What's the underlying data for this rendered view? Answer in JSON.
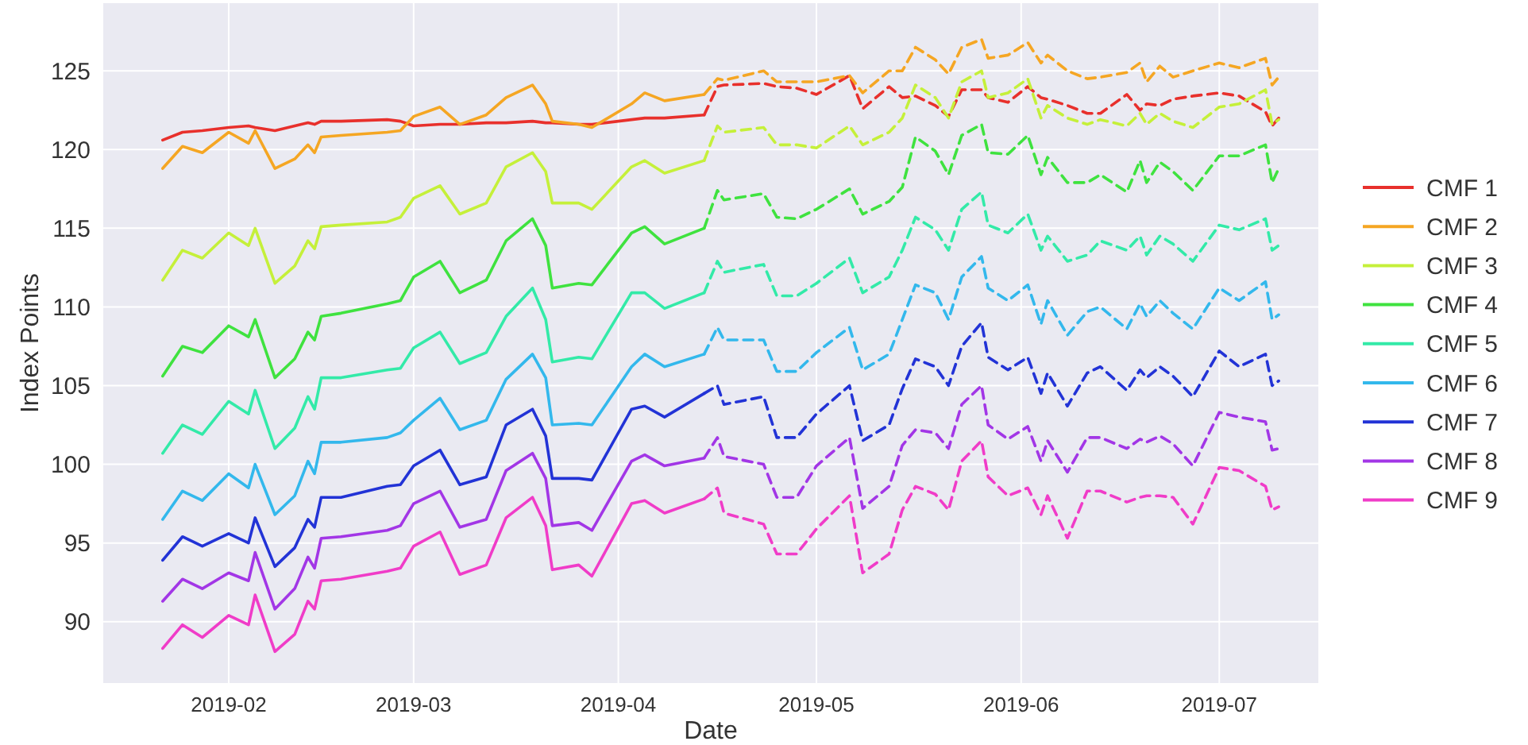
{
  "chart_data": {
    "type": "line",
    "xlabel": "Date",
    "ylabel": "Index Points",
    "xlim": [
      "2019-01-13",
      "2019-07-16"
    ],
    "xticks": [
      "2019-02",
      "2019-03",
      "2019-04",
      "2019-05",
      "2019-06",
      "2019-07"
    ],
    "ylim": [
      86.1,
      129.3
    ],
    "yticks": [
      90,
      95,
      100,
      105,
      110,
      115,
      120,
      125
    ],
    "grid": true,
    "legend": "right",
    "marker": "none",
    "series": [
      {
        "name": "CMF 1",
        "color": "#e8302c",
        "line_style": "solid",
        "x": [
          "2019-01-22",
          "2019-01-25",
          "2019-01-28",
          "2019-02-01",
          "2019-02-04",
          "2019-02-05",
          "2019-02-08",
          "2019-02-11",
          "2019-02-13",
          "2019-02-14",
          "2019-02-15",
          "2019-02-18",
          "2019-02-25",
          "2019-02-27",
          "2019-03-01",
          "2019-03-05",
          "2019-03-08",
          "2019-03-12",
          "2019-03-15",
          "2019-03-19",
          "2019-03-21",
          "2019-03-22",
          "2019-03-26",
          "2019-03-28",
          "2019-04-03",
          "2019-04-05",
          "2019-04-08",
          "2019-04-14"
        ],
        "values": [
          120.6,
          121.1,
          121.2,
          121.4,
          121.5,
          121.4,
          121.2,
          121.5,
          121.7,
          121.6,
          121.8,
          121.8,
          121.9,
          121.8,
          121.5,
          121.6,
          121.6,
          121.7,
          121.7,
          121.8,
          121.7,
          121.7,
          121.6,
          121.6,
          121.9,
          122.0,
          122.0,
          122.2
        ]
      },
      {
        "name": "CMF 2",
        "color": "#f5a623",
        "line_style": "solid",
        "x": [
          "2019-01-22",
          "2019-01-25",
          "2019-01-28",
          "2019-02-01",
          "2019-02-04",
          "2019-02-05",
          "2019-02-08",
          "2019-02-11",
          "2019-02-13",
          "2019-02-14",
          "2019-02-15",
          "2019-02-18",
          "2019-02-25",
          "2019-02-27",
          "2019-03-01",
          "2019-03-05",
          "2019-03-08",
          "2019-03-12",
          "2019-03-15",
          "2019-03-19",
          "2019-03-21",
          "2019-03-22",
          "2019-03-26",
          "2019-03-28",
          "2019-04-03",
          "2019-04-05",
          "2019-04-08",
          "2019-04-14"
        ],
        "values": [
          118.8,
          120.2,
          119.8,
          121.1,
          120.4,
          121.2,
          118.8,
          119.4,
          120.3,
          119.8,
          120.8,
          120.9,
          121.1,
          121.2,
          122.1,
          122.7,
          121.6,
          122.2,
          123.3,
          124.1,
          122.9,
          121.8,
          121.6,
          121.4,
          122.9,
          123.6,
          123.1,
          123.5
        ]
      },
      {
        "name": "CMF 3",
        "color": "#c5f03a",
        "line_style": "solid",
        "x": [
          "2019-01-22",
          "2019-01-25",
          "2019-01-28",
          "2019-02-01",
          "2019-02-04",
          "2019-02-05",
          "2019-02-08",
          "2019-02-11",
          "2019-02-13",
          "2019-02-14",
          "2019-02-15",
          "2019-02-18",
          "2019-02-25",
          "2019-02-27",
          "2019-03-01",
          "2019-03-05",
          "2019-03-08",
          "2019-03-12",
          "2019-03-15",
          "2019-03-19",
          "2019-03-21",
          "2019-03-22",
          "2019-03-26",
          "2019-03-28",
          "2019-04-03",
          "2019-04-05",
          "2019-04-08",
          "2019-04-14"
        ],
        "values": [
          111.7,
          113.6,
          113.1,
          114.7,
          113.9,
          115.0,
          111.5,
          112.6,
          114.2,
          113.7,
          115.1,
          115.2,
          115.4,
          115.7,
          116.9,
          117.7,
          115.9,
          116.6,
          118.9,
          119.8,
          118.6,
          116.6,
          116.6,
          116.2,
          118.9,
          119.3,
          118.5,
          119.3
        ]
      },
      {
        "name": "CMF 4",
        "color": "#3fe23f",
        "line_style": "solid",
        "x": [
          "2019-01-22",
          "2019-01-25",
          "2019-01-28",
          "2019-02-01",
          "2019-02-04",
          "2019-02-05",
          "2019-02-08",
          "2019-02-11",
          "2019-02-13",
          "2019-02-14",
          "2019-02-15",
          "2019-02-18",
          "2019-02-25",
          "2019-02-27",
          "2019-03-01",
          "2019-03-05",
          "2019-03-08",
          "2019-03-12",
          "2019-03-15",
          "2019-03-19",
          "2019-03-21",
          "2019-03-22",
          "2019-03-26",
          "2019-03-28",
          "2019-04-03",
          "2019-04-05",
          "2019-04-08",
          "2019-04-14"
        ],
        "values": [
          105.6,
          107.5,
          107.1,
          108.8,
          108.1,
          109.2,
          105.5,
          106.7,
          108.4,
          107.9,
          109.4,
          109.6,
          110.2,
          110.4,
          111.9,
          112.9,
          110.9,
          111.7,
          114.2,
          115.6,
          113.9,
          111.2,
          111.5,
          111.4,
          114.7,
          115.1,
          114.0,
          115.0
        ]
      },
      {
        "name": "CMF 5",
        "color": "#33eaa8",
        "line_style": "solid",
        "x": [
          "2019-01-22",
          "2019-01-25",
          "2019-01-28",
          "2019-02-01",
          "2019-02-04",
          "2019-02-05",
          "2019-02-08",
          "2019-02-11",
          "2019-02-13",
          "2019-02-14",
          "2019-02-15",
          "2019-02-18",
          "2019-02-25",
          "2019-02-27",
          "2019-03-01",
          "2019-03-05",
          "2019-03-08",
          "2019-03-12",
          "2019-03-15",
          "2019-03-19",
          "2019-03-21",
          "2019-03-22",
          "2019-03-26",
          "2019-03-28",
          "2019-04-03",
          "2019-04-05",
          "2019-04-08",
          "2019-04-14"
        ],
        "values": [
          100.7,
          102.5,
          101.9,
          104.0,
          103.2,
          104.7,
          101.0,
          102.3,
          104.3,
          103.5,
          105.5,
          105.5,
          106.0,
          106.1,
          107.4,
          108.4,
          106.4,
          107.1,
          109.4,
          111.2,
          109.2,
          106.5,
          106.8,
          106.7,
          110.9,
          110.9,
          109.9,
          110.9
        ]
      },
      {
        "name": "CMF 6",
        "color": "#33b8ec",
        "line_style": "solid",
        "x": [
          "2019-01-22",
          "2019-01-25",
          "2019-01-28",
          "2019-02-01",
          "2019-02-04",
          "2019-02-05",
          "2019-02-08",
          "2019-02-11",
          "2019-02-13",
          "2019-02-14",
          "2019-02-15",
          "2019-02-18",
          "2019-02-25",
          "2019-02-27",
          "2019-03-01",
          "2019-03-05",
          "2019-03-08",
          "2019-03-12",
          "2019-03-15",
          "2019-03-19",
          "2019-03-21",
          "2019-03-22",
          "2019-03-26",
          "2019-03-28",
          "2019-04-03",
          "2019-04-05",
          "2019-04-08",
          "2019-04-14"
        ],
        "values": [
          96.5,
          98.3,
          97.7,
          99.4,
          98.5,
          100.0,
          96.8,
          98.0,
          100.2,
          99.4,
          101.4,
          101.4,
          101.7,
          102.0,
          102.8,
          104.2,
          102.2,
          102.8,
          105.4,
          107.0,
          105.5,
          102.5,
          102.6,
          102.5,
          106.2,
          107.0,
          106.2,
          107.0
        ]
      },
      {
        "name": "CMF 7",
        "color": "#2233d6",
        "line_style": "solid",
        "x": [
          "2019-01-22",
          "2019-01-25",
          "2019-01-28",
          "2019-02-01",
          "2019-02-04",
          "2019-02-05",
          "2019-02-08",
          "2019-02-11",
          "2019-02-13",
          "2019-02-14",
          "2019-02-15",
          "2019-02-18",
          "2019-02-25",
          "2019-02-27",
          "2019-03-01",
          "2019-03-05",
          "2019-03-08",
          "2019-03-12",
          "2019-03-15",
          "2019-03-19",
          "2019-03-21",
          "2019-03-22",
          "2019-03-26",
          "2019-03-28",
          "2019-04-03",
          "2019-04-05",
          "2019-04-08",
          "2019-04-14"
        ],
        "values": [
          93.9,
          95.4,
          94.8,
          95.6,
          95.0,
          96.6,
          93.5,
          94.7,
          96.5,
          96.0,
          97.9,
          97.9,
          98.6,
          98.7,
          99.9,
          100.9,
          98.7,
          99.2,
          102.5,
          103.5,
          101.8,
          99.1,
          99.1,
          99.0,
          103.5,
          103.7,
          103.0,
          104.5
        ]
      },
      {
        "name": "CMF 8",
        "color": "#a236e6",
        "line_style": "solid",
        "x": [
          "2019-01-22",
          "2019-01-25",
          "2019-01-28",
          "2019-02-01",
          "2019-02-04",
          "2019-02-05",
          "2019-02-08",
          "2019-02-11",
          "2019-02-13",
          "2019-02-14",
          "2019-02-15",
          "2019-02-18",
          "2019-02-25",
          "2019-02-27",
          "2019-03-01",
          "2019-03-05",
          "2019-03-08",
          "2019-03-12",
          "2019-03-15",
          "2019-03-19",
          "2019-03-21",
          "2019-03-22",
          "2019-03-26",
          "2019-03-28",
          "2019-04-03",
          "2019-04-05",
          "2019-04-08",
          "2019-04-14"
        ],
        "values": [
          91.3,
          92.7,
          92.1,
          93.1,
          92.6,
          94.4,
          90.8,
          92.1,
          94.1,
          93.4,
          95.3,
          95.4,
          95.8,
          96.1,
          97.5,
          98.3,
          96.0,
          96.5,
          99.6,
          100.7,
          99.1,
          96.1,
          96.3,
          95.8,
          100.2,
          100.6,
          99.9,
          100.4
        ]
      },
      {
        "name": "CMF 9",
        "color": "#f03cc8",
        "line_style": "solid",
        "x": [
          "2019-01-22",
          "2019-01-25",
          "2019-01-28",
          "2019-02-01",
          "2019-02-04",
          "2019-02-05",
          "2019-02-08",
          "2019-02-11",
          "2019-02-13",
          "2019-02-14",
          "2019-02-15",
          "2019-02-18",
          "2019-02-25",
          "2019-02-27",
          "2019-03-01",
          "2019-03-05",
          "2019-03-08",
          "2019-03-12",
          "2019-03-15",
          "2019-03-19",
          "2019-03-21",
          "2019-03-22",
          "2019-03-26",
          "2019-03-28",
          "2019-04-03",
          "2019-04-05",
          "2019-04-08",
          "2019-04-14"
        ],
        "values": [
          88.3,
          89.8,
          89.0,
          90.4,
          89.8,
          91.7,
          88.1,
          89.2,
          91.3,
          90.8,
          92.6,
          92.7,
          93.2,
          93.4,
          94.8,
          95.7,
          93.0,
          93.6,
          96.6,
          97.9,
          96.1,
          93.3,
          93.6,
          92.9,
          97.5,
          97.7,
          96.9,
          97.8
        ]
      },
      {
        "color": "#e8302c",
        "line_style": "dashed",
        "x": [
          "2019-04-14",
          "2019-04-16",
          "2019-04-17",
          "2019-04-23",
          "2019-04-25",
          "2019-04-28",
          "2019-05-01",
          "2019-05-06",
          "2019-05-08",
          "2019-05-12",
          "2019-05-14",
          "2019-05-16",
          "2019-05-19",
          "2019-05-21",
          "2019-05-23",
          "2019-05-26",
          "2019-05-27",
          "2019-05-30",
          "2019-06-02",
          "2019-06-04",
          "2019-06-05",
          "2019-06-08",
          "2019-06-11",
          "2019-06-13",
          "2019-06-17",
          "2019-06-19",
          "2019-06-20",
          "2019-06-22",
          "2019-06-24",
          "2019-06-27",
          "2019-07-01",
          "2019-07-04",
          "2019-07-08",
          "2019-07-09",
          "2019-07-10"
        ],
        "values": [
          122.2,
          124.0,
          124.1,
          124.2,
          124.0,
          123.9,
          123.5,
          124.7,
          122.6,
          124.0,
          123.3,
          123.4,
          122.8,
          122.1,
          123.8,
          123.8,
          123.3,
          123.0,
          124.0,
          123.3,
          123.2,
          122.8,
          122.3,
          122.3,
          123.5,
          122.5,
          122.9,
          122.8,
          123.2,
          123.4,
          123.6,
          123.4,
          122.4,
          121.5,
          122.0
        ]
      },
      {
        "color": "#f5a623",
        "line_style": "dashed",
        "x": [
          "2019-04-14",
          "2019-04-16",
          "2019-04-17",
          "2019-04-23",
          "2019-04-25",
          "2019-04-28",
          "2019-05-01",
          "2019-05-06",
          "2019-05-08",
          "2019-05-12",
          "2019-05-14",
          "2019-05-16",
          "2019-05-19",
          "2019-05-21",
          "2019-05-23",
          "2019-05-26",
          "2019-05-27",
          "2019-05-30",
          "2019-06-02",
          "2019-06-04",
          "2019-06-05",
          "2019-06-08",
          "2019-06-11",
          "2019-06-13",
          "2019-06-17",
          "2019-06-19",
          "2019-06-20",
          "2019-06-22",
          "2019-06-24",
          "2019-06-27",
          "2019-07-01",
          "2019-07-04",
          "2019-07-08",
          "2019-07-09",
          "2019-07-10"
        ],
        "values": [
          123.5,
          124.5,
          124.4,
          125.0,
          124.3,
          124.3,
          124.3,
          124.7,
          123.6,
          125.0,
          125.0,
          126.5,
          125.7,
          124.8,
          126.5,
          127.0,
          125.8,
          126.0,
          126.8,
          125.5,
          126.0,
          125.0,
          124.5,
          124.6,
          124.9,
          125.5,
          124.3,
          125.3,
          124.6,
          125.0,
          125.5,
          125.2,
          125.8,
          124.1,
          124.6
        ]
      },
      {
        "color": "#c5f03a",
        "line_style": "dashed",
        "x": [
          "2019-04-14",
          "2019-04-16",
          "2019-04-17",
          "2019-04-23",
          "2019-04-25",
          "2019-04-28",
          "2019-05-01",
          "2019-05-06",
          "2019-05-08",
          "2019-05-12",
          "2019-05-14",
          "2019-05-16",
          "2019-05-19",
          "2019-05-21",
          "2019-05-23",
          "2019-05-26",
          "2019-05-27",
          "2019-05-30",
          "2019-06-02",
          "2019-06-04",
          "2019-06-05",
          "2019-06-08",
          "2019-06-11",
          "2019-06-13",
          "2019-06-17",
          "2019-06-19",
          "2019-06-20",
          "2019-06-22",
          "2019-06-24",
          "2019-06-27",
          "2019-07-01",
          "2019-07-04",
          "2019-07-08",
          "2019-07-09",
          "2019-07-10"
        ],
        "values": [
          119.3,
          121.5,
          121.1,
          121.4,
          120.3,
          120.3,
          120.1,
          121.5,
          120.3,
          121.1,
          122.0,
          124.1,
          123.3,
          122.0,
          124.3,
          125.0,
          123.3,
          123.6,
          124.5,
          122.0,
          122.8,
          122.0,
          121.6,
          121.9,
          121.5,
          122.3,
          121.6,
          122.3,
          121.8,
          121.4,
          122.7,
          122.9,
          123.8,
          121.6,
          121.9
        ]
      },
      {
        "color": "#3fe23f",
        "line_style": "dashed",
        "x": [
          "2019-04-14",
          "2019-04-16",
          "2019-04-17",
          "2019-04-23",
          "2019-04-25",
          "2019-04-28",
          "2019-05-01",
          "2019-05-06",
          "2019-05-08",
          "2019-05-12",
          "2019-05-14",
          "2019-05-16",
          "2019-05-19",
          "2019-05-21",
          "2019-05-23",
          "2019-05-26",
          "2019-05-27",
          "2019-05-30",
          "2019-06-02",
          "2019-06-04",
          "2019-06-05",
          "2019-06-08",
          "2019-06-11",
          "2019-06-13",
          "2019-06-17",
          "2019-06-19",
          "2019-06-20",
          "2019-06-22",
          "2019-06-24",
          "2019-06-27",
          "2019-07-01",
          "2019-07-04",
          "2019-07-08",
          "2019-07-09",
          "2019-07-10"
        ],
        "values": [
          115.0,
          117.4,
          116.8,
          117.2,
          115.7,
          115.6,
          116.2,
          117.5,
          115.9,
          116.7,
          117.6,
          120.8,
          119.9,
          118.4,
          120.9,
          121.6,
          119.8,
          119.7,
          120.9,
          118.4,
          119.5,
          117.9,
          117.9,
          118.4,
          117.3,
          119.3,
          117.9,
          119.2,
          118.6,
          117.4,
          119.6,
          119.6,
          120.3,
          117.9,
          118.8
        ]
      },
      {
        "color": "#33eaa8",
        "line_style": "dashed",
        "x": [
          "2019-04-14",
          "2019-04-16",
          "2019-04-17",
          "2019-04-23",
          "2019-04-25",
          "2019-04-28",
          "2019-05-01",
          "2019-05-06",
          "2019-05-08",
          "2019-05-12",
          "2019-05-14",
          "2019-05-16",
          "2019-05-19",
          "2019-05-21",
          "2019-05-23",
          "2019-05-26",
          "2019-05-27",
          "2019-05-30",
          "2019-06-02",
          "2019-06-04",
          "2019-06-05",
          "2019-06-08",
          "2019-06-11",
          "2019-06-13",
          "2019-06-17",
          "2019-06-19",
          "2019-06-20",
          "2019-06-22",
          "2019-06-24",
          "2019-06-27",
          "2019-07-01",
          "2019-07-04",
          "2019-07-08",
          "2019-07-09",
          "2019-07-10"
        ],
        "values": [
          110.9,
          112.9,
          112.2,
          112.7,
          110.7,
          110.7,
          111.5,
          113.1,
          110.9,
          111.9,
          113.6,
          115.7,
          114.9,
          113.6,
          116.2,
          117.3,
          115.2,
          114.7,
          115.9,
          113.6,
          114.5,
          112.9,
          113.3,
          114.2,
          113.6,
          114.5,
          113.3,
          114.5,
          114.0,
          112.9,
          115.2,
          114.9,
          115.6,
          113.6,
          113.9
        ]
      },
      {
        "color": "#33b8ec",
        "line_style": "dashed",
        "x": [
          "2019-04-14",
          "2019-04-16",
          "2019-04-17",
          "2019-04-23",
          "2019-04-25",
          "2019-04-28",
          "2019-05-01",
          "2019-05-06",
          "2019-05-08",
          "2019-05-12",
          "2019-05-14",
          "2019-05-16",
          "2019-05-19",
          "2019-05-21",
          "2019-05-23",
          "2019-05-26",
          "2019-05-27",
          "2019-05-30",
          "2019-06-02",
          "2019-06-04",
          "2019-06-05",
          "2019-06-08",
          "2019-06-11",
          "2019-06-13",
          "2019-06-17",
          "2019-06-19",
          "2019-06-20",
          "2019-06-22",
          "2019-06-24",
          "2019-06-27",
          "2019-07-01",
          "2019-07-04",
          "2019-07-08",
          "2019-07-09",
          "2019-07-10"
        ],
        "values": [
          107.0,
          108.7,
          107.9,
          107.9,
          105.9,
          105.9,
          107.1,
          108.7,
          106.0,
          107.0,
          109.2,
          111.4,
          110.9,
          109.2,
          111.9,
          113.2,
          111.2,
          110.4,
          111.4,
          108.9,
          110.4,
          108.2,
          109.7,
          110.0,
          108.6,
          110.2,
          109.4,
          110.4,
          109.6,
          108.6,
          111.2,
          110.4,
          111.6,
          109.2,
          109.5
        ]
      },
      {
        "color": "#2233d6",
        "line_style": "dashed",
        "x": [
          "2019-04-14",
          "2019-04-16",
          "2019-04-17",
          "2019-04-23",
          "2019-04-25",
          "2019-04-28",
          "2019-05-01",
          "2019-05-06",
          "2019-05-08",
          "2019-05-12",
          "2019-05-14",
          "2019-05-16",
          "2019-05-19",
          "2019-05-21",
          "2019-05-23",
          "2019-05-26",
          "2019-05-27",
          "2019-05-30",
          "2019-06-02",
          "2019-06-04",
          "2019-06-05",
          "2019-06-08",
          "2019-06-11",
          "2019-06-13",
          "2019-06-17",
          "2019-06-19",
          "2019-06-20",
          "2019-06-22",
          "2019-06-24",
          "2019-06-27",
          "2019-07-01",
          "2019-07-04",
          "2019-07-08",
          "2019-07-09",
          "2019-07-10"
        ],
        "values": [
          104.5,
          105.0,
          103.8,
          104.3,
          101.7,
          101.7,
          103.2,
          105.0,
          101.5,
          102.5,
          104.8,
          106.7,
          106.2,
          105.0,
          107.5,
          109.0,
          106.8,
          106.0,
          106.8,
          104.5,
          105.8,
          103.7,
          105.8,
          106.2,
          104.7,
          106.0,
          105.5,
          106.2,
          105.6,
          104.3,
          107.2,
          106.2,
          107.0,
          105.0,
          105.3
        ]
      },
      {
        "color": "#a236e6",
        "line_style": "dashed",
        "x": [
          "2019-04-14",
          "2019-04-16",
          "2019-04-17",
          "2019-04-23",
          "2019-04-25",
          "2019-04-28",
          "2019-05-01",
          "2019-05-06",
          "2019-05-08",
          "2019-05-12",
          "2019-05-14",
          "2019-05-16",
          "2019-05-19",
          "2019-05-21",
          "2019-05-23",
          "2019-05-26",
          "2019-05-27",
          "2019-05-30",
          "2019-06-02",
          "2019-06-04",
          "2019-06-05",
          "2019-06-08",
          "2019-06-11",
          "2019-06-13",
          "2019-06-17",
          "2019-06-19",
          "2019-06-20",
          "2019-06-22",
          "2019-06-24",
          "2019-06-27",
          "2019-07-01",
          "2019-07-04",
          "2019-07-08",
          "2019-07-09",
          "2019-07-10"
        ],
        "values": [
          100.4,
          101.7,
          100.5,
          100.0,
          97.9,
          97.9,
          99.9,
          101.7,
          97.2,
          98.6,
          101.2,
          102.2,
          102.0,
          101.0,
          103.8,
          105.0,
          102.5,
          101.6,
          102.4,
          100.2,
          101.5,
          99.5,
          101.7,
          101.7,
          101.0,
          101.6,
          101.4,
          101.8,
          101.3,
          99.9,
          103.3,
          103.0,
          102.7,
          100.9,
          101.0
        ]
      },
      {
        "color": "#f03cc8",
        "line_style": "dashed",
        "x": [
          "2019-04-14",
          "2019-04-16",
          "2019-04-17",
          "2019-04-23",
          "2019-04-25",
          "2019-04-28",
          "2019-05-01",
          "2019-05-06",
          "2019-05-08",
          "2019-05-12",
          "2019-05-14",
          "2019-05-16",
          "2019-05-19",
          "2019-05-21",
          "2019-05-23",
          "2019-05-26",
          "2019-05-27",
          "2019-05-30",
          "2019-06-02",
          "2019-06-04",
          "2019-06-05",
          "2019-06-08",
          "2019-06-11",
          "2019-06-13",
          "2019-06-17",
          "2019-06-19",
          "2019-06-20",
          "2019-06-22",
          "2019-06-24",
          "2019-06-27",
          "2019-07-01",
          "2019-07-04",
          "2019-07-08",
          "2019-07-09",
          "2019-07-10"
        ],
        "values": [
          97.8,
          98.5,
          96.9,
          96.2,
          94.3,
          94.3,
          95.9,
          98.0,
          93.1,
          94.3,
          97.1,
          98.6,
          98.1,
          97.1,
          100.2,
          101.5,
          99.2,
          98.0,
          98.5,
          96.8,
          98.0,
          95.3,
          98.3,
          98.3,
          97.6,
          97.9,
          98.0,
          98.0,
          97.9,
          96.2,
          99.8,
          99.6,
          98.6,
          97.1,
          97.3
        ]
      }
    ]
  }
}
